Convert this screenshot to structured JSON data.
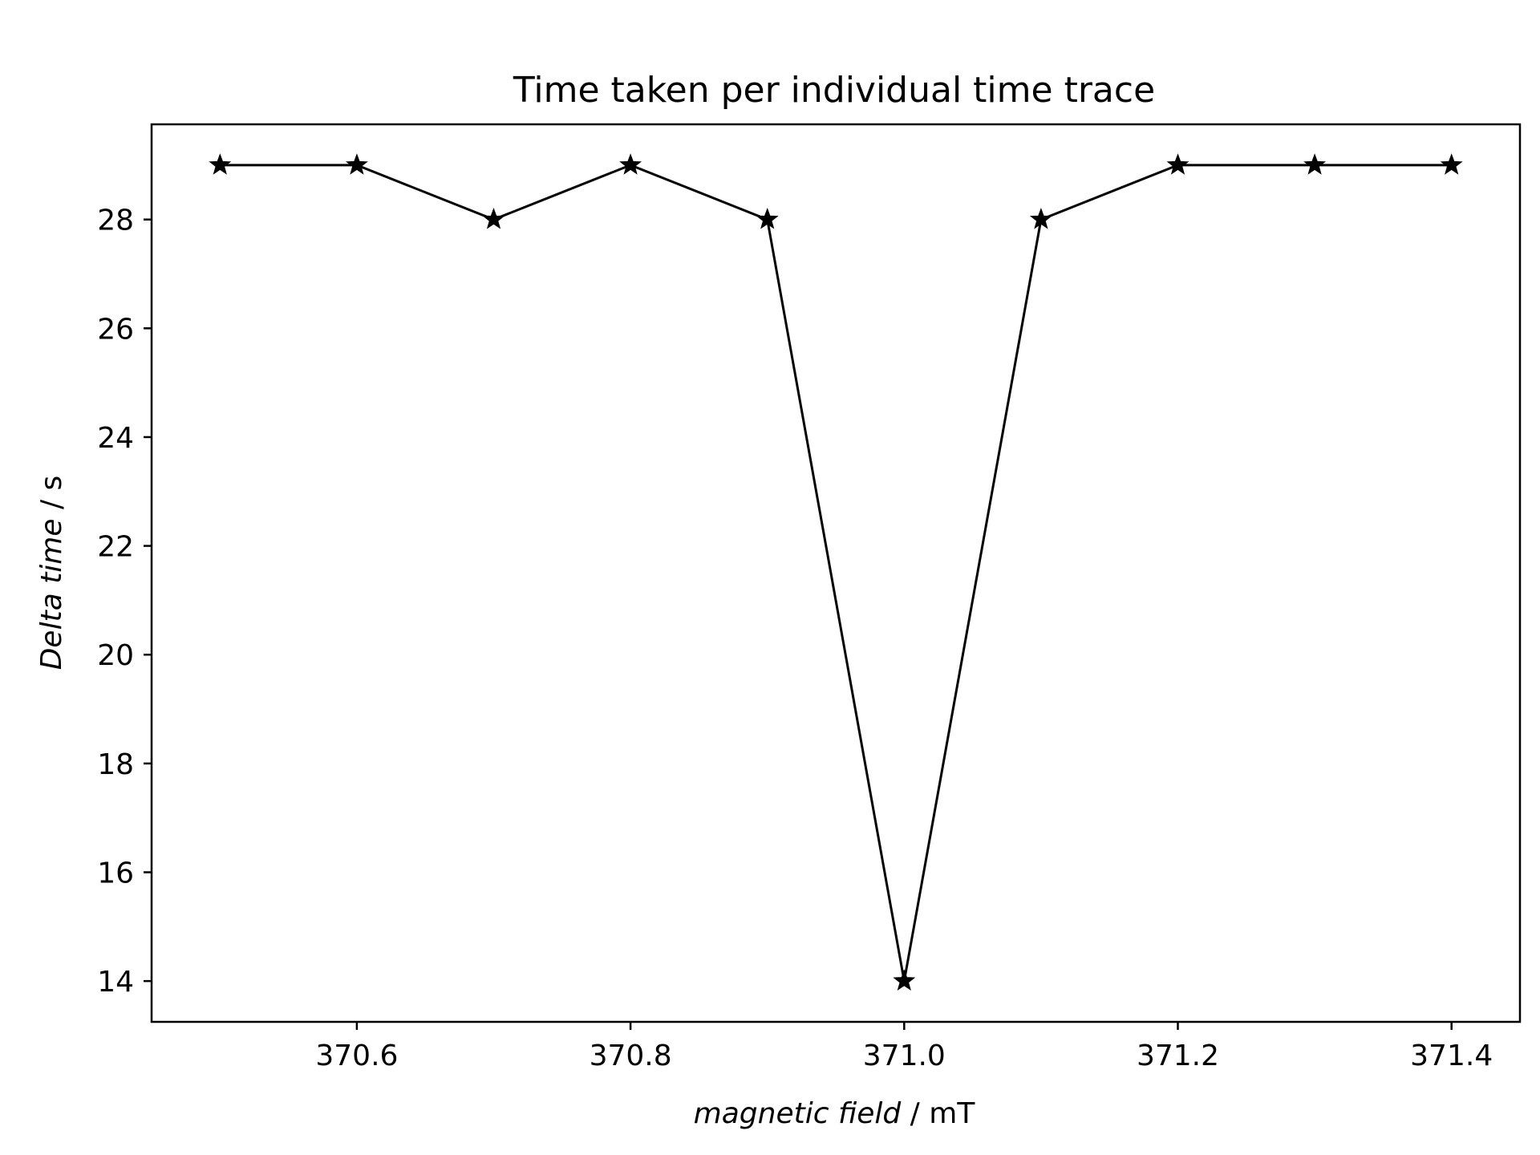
{
  "chart_data": {
    "type": "line",
    "title": "Time taken per individual time trace",
    "xlabel": {
      "italic": "magnetic field",
      "plain": " / mT"
    },
    "ylabel": {
      "italic": "Delta time",
      "plain": " / s"
    },
    "xlim": [
      370.45,
      371.45
    ],
    "ylim": [
      13.25,
      29.75
    ],
    "xticks": [
      370.6,
      370.8,
      371.0,
      371.2,
      371.4
    ],
    "xtick_labels": [
      "370.6",
      "370.8",
      "371.0",
      "371.2",
      "371.4"
    ],
    "yticks": [
      14,
      16,
      18,
      20,
      22,
      24,
      26,
      28
    ],
    "ytick_labels": [
      "14",
      "16",
      "18",
      "20",
      "22",
      "24",
      "26",
      "28"
    ],
    "grid": false,
    "marker": "star",
    "line_color": "#000000",
    "series": [
      {
        "x": [
          370.5,
          370.6,
          370.7,
          370.8,
          370.9,
          371.0,
          371.1,
          371.2,
          371.3,
          371.4
        ],
        "y": [
          29,
          29,
          28,
          29,
          28,
          14,
          28,
          29,
          29,
          29
        ]
      }
    ]
  }
}
